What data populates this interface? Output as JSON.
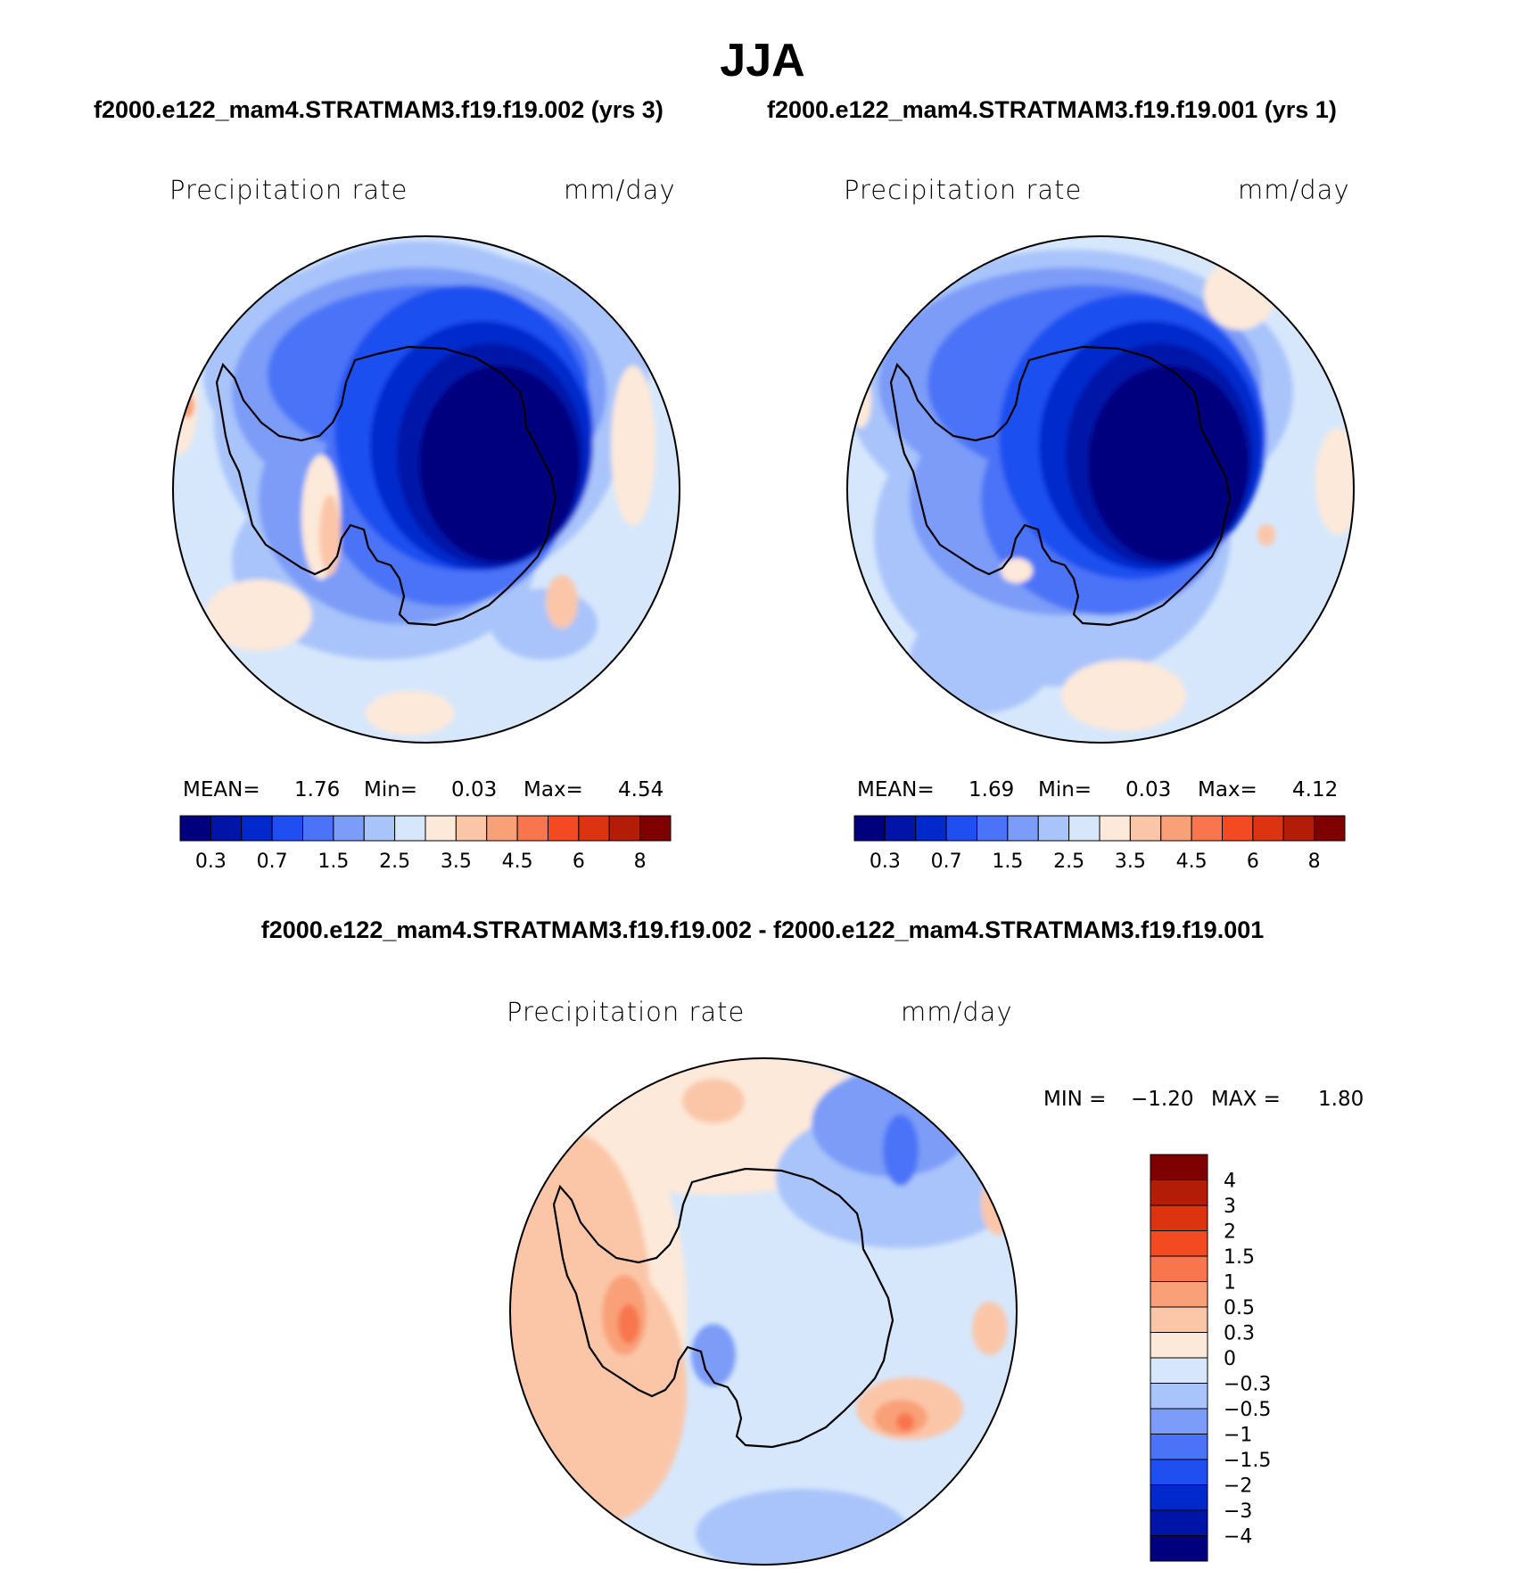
{
  "title": "JJA",
  "case_labels": {
    "left": "f2000.e122_mam4.STRATMAM3.f19.f19.002 (yrs 3)",
    "right": "f2000.e122_mam4.STRATMAM3.f19.f19.001 (yrs 1)"
  },
  "diff_title": "f2000.e122_mam4.STRATMAM3.f19.f19.002 - f2000.e122_mam4.STRATMAM3.f19.f19.001",
  "panels": [
    {
      "id": "case1",
      "variable": "Precipitation rate",
      "units": "mm/day",
      "mean_label": "MEAN=",
      "mean": "1.76",
      "min_label": "Min=",
      "min": "0.03",
      "max_label": "Max=",
      "max": "4.54"
    },
    {
      "id": "case2",
      "variable": "Precipitation rate",
      "units": "mm/day",
      "mean_label": "MEAN=",
      "mean": "1.69",
      "min_label": "Min=",
      "min": "0.03",
      "max_label": "Max=",
      "max": "4.12"
    },
    {
      "id": "diff",
      "variable": "Precipitation rate",
      "units": "mm/day",
      "min_label": "MIN =",
      "min": "−1.20",
      "max_label": "MAX =",
      "max": "1.80"
    }
  ],
  "colorbar_abs": {
    "colors": [
      "#00007f",
      "#0014a8",
      "#0029cc",
      "#1f4ff0",
      "#4b73f7",
      "#7b9cf8",
      "#a9c4fa",
      "#d6e7fc",
      "#fde9d9",
      "#fbc6a8",
      "#f9a078",
      "#f8754d",
      "#f44a22",
      "#dc3410",
      "#b31c06",
      "#7f0000"
    ],
    "labels": [
      "0.3",
      "0.7",
      "1.5",
      "2.5",
      "3.5",
      "4.5",
      "6",
      "8"
    ]
  },
  "colorbar_diff": {
    "colors": [
      "#7f0000",
      "#b31c06",
      "#dc3410",
      "#f44a22",
      "#f8754d",
      "#f9a078",
      "#fbc6a8",
      "#fde9d9",
      "#d6e7fc",
      "#a9c4fa",
      "#7b9cf8",
      "#4b73f7",
      "#1f4ff0",
      "#0029cc",
      "#0014a8",
      "#00007f"
    ],
    "labels": [
      "4",
      "3",
      "2",
      "1.5",
      "1",
      "0.5",
      "0.3",
      "0",
      "−0.3",
      "−0.5",
      "−1",
      "−1.5",
      "−2",
      "−3",
      "−4"
    ]
  }
}
